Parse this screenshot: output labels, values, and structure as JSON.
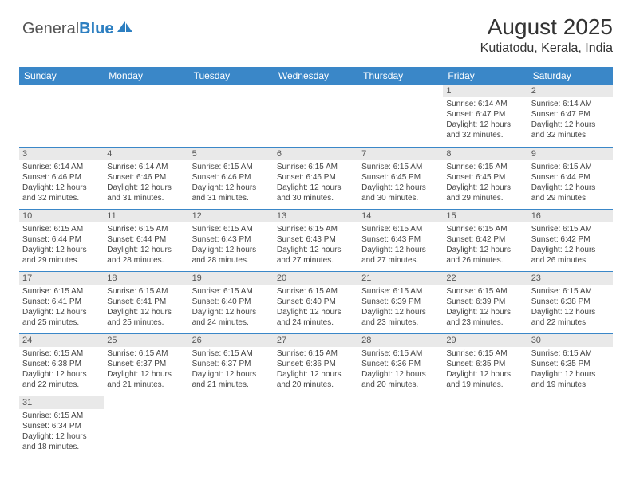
{
  "logo": {
    "word1": "General",
    "word2": "Blue"
  },
  "header": {
    "month_title": "August 2025",
    "location": "Kutiatodu, Kerala, India"
  },
  "colors": {
    "header_bg": "#3a87c8",
    "daynum_bg": "#e9e9e9",
    "rule": "#3a87c8"
  },
  "weekdays": [
    "Sunday",
    "Monday",
    "Tuesday",
    "Wednesday",
    "Thursday",
    "Friday",
    "Saturday"
  ],
  "weeks": [
    [
      null,
      null,
      null,
      null,
      null,
      {
        "n": "1",
        "sr": "Sunrise: 6:14 AM",
        "ss": "Sunset: 6:47 PM",
        "d1": "Daylight: 12 hours",
        "d2": "and 32 minutes."
      },
      {
        "n": "2",
        "sr": "Sunrise: 6:14 AM",
        "ss": "Sunset: 6:47 PM",
        "d1": "Daylight: 12 hours",
        "d2": "and 32 minutes."
      }
    ],
    [
      {
        "n": "3",
        "sr": "Sunrise: 6:14 AM",
        "ss": "Sunset: 6:46 PM",
        "d1": "Daylight: 12 hours",
        "d2": "and 32 minutes."
      },
      {
        "n": "4",
        "sr": "Sunrise: 6:14 AM",
        "ss": "Sunset: 6:46 PM",
        "d1": "Daylight: 12 hours",
        "d2": "and 31 minutes."
      },
      {
        "n": "5",
        "sr": "Sunrise: 6:15 AM",
        "ss": "Sunset: 6:46 PM",
        "d1": "Daylight: 12 hours",
        "d2": "and 31 minutes."
      },
      {
        "n": "6",
        "sr": "Sunrise: 6:15 AM",
        "ss": "Sunset: 6:46 PM",
        "d1": "Daylight: 12 hours",
        "d2": "and 30 minutes."
      },
      {
        "n": "7",
        "sr": "Sunrise: 6:15 AM",
        "ss": "Sunset: 6:45 PM",
        "d1": "Daylight: 12 hours",
        "d2": "and 30 minutes."
      },
      {
        "n": "8",
        "sr": "Sunrise: 6:15 AM",
        "ss": "Sunset: 6:45 PM",
        "d1": "Daylight: 12 hours",
        "d2": "and 29 minutes."
      },
      {
        "n": "9",
        "sr": "Sunrise: 6:15 AM",
        "ss": "Sunset: 6:44 PM",
        "d1": "Daylight: 12 hours",
        "d2": "and 29 minutes."
      }
    ],
    [
      {
        "n": "10",
        "sr": "Sunrise: 6:15 AM",
        "ss": "Sunset: 6:44 PM",
        "d1": "Daylight: 12 hours",
        "d2": "and 29 minutes."
      },
      {
        "n": "11",
        "sr": "Sunrise: 6:15 AM",
        "ss": "Sunset: 6:44 PM",
        "d1": "Daylight: 12 hours",
        "d2": "and 28 minutes."
      },
      {
        "n": "12",
        "sr": "Sunrise: 6:15 AM",
        "ss": "Sunset: 6:43 PM",
        "d1": "Daylight: 12 hours",
        "d2": "and 28 minutes."
      },
      {
        "n": "13",
        "sr": "Sunrise: 6:15 AM",
        "ss": "Sunset: 6:43 PM",
        "d1": "Daylight: 12 hours",
        "d2": "and 27 minutes."
      },
      {
        "n": "14",
        "sr": "Sunrise: 6:15 AM",
        "ss": "Sunset: 6:43 PM",
        "d1": "Daylight: 12 hours",
        "d2": "and 27 minutes."
      },
      {
        "n": "15",
        "sr": "Sunrise: 6:15 AM",
        "ss": "Sunset: 6:42 PM",
        "d1": "Daylight: 12 hours",
        "d2": "and 26 minutes."
      },
      {
        "n": "16",
        "sr": "Sunrise: 6:15 AM",
        "ss": "Sunset: 6:42 PM",
        "d1": "Daylight: 12 hours",
        "d2": "and 26 minutes."
      }
    ],
    [
      {
        "n": "17",
        "sr": "Sunrise: 6:15 AM",
        "ss": "Sunset: 6:41 PM",
        "d1": "Daylight: 12 hours",
        "d2": "and 25 minutes."
      },
      {
        "n": "18",
        "sr": "Sunrise: 6:15 AM",
        "ss": "Sunset: 6:41 PM",
        "d1": "Daylight: 12 hours",
        "d2": "and 25 minutes."
      },
      {
        "n": "19",
        "sr": "Sunrise: 6:15 AM",
        "ss": "Sunset: 6:40 PM",
        "d1": "Daylight: 12 hours",
        "d2": "and 24 minutes."
      },
      {
        "n": "20",
        "sr": "Sunrise: 6:15 AM",
        "ss": "Sunset: 6:40 PM",
        "d1": "Daylight: 12 hours",
        "d2": "and 24 minutes."
      },
      {
        "n": "21",
        "sr": "Sunrise: 6:15 AM",
        "ss": "Sunset: 6:39 PM",
        "d1": "Daylight: 12 hours",
        "d2": "and 23 minutes."
      },
      {
        "n": "22",
        "sr": "Sunrise: 6:15 AM",
        "ss": "Sunset: 6:39 PM",
        "d1": "Daylight: 12 hours",
        "d2": "and 23 minutes."
      },
      {
        "n": "23",
        "sr": "Sunrise: 6:15 AM",
        "ss": "Sunset: 6:38 PM",
        "d1": "Daylight: 12 hours",
        "d2": "and 22 minutes."
      }
    ],
    [
      {
        "n": "24",
        "sr": "Sunrise: 6:15 AM",
        "ss": "Sunset: 6:38 PM",
        "d1": "Daylight: 12 hours",
        "d2": "and 22 minutes."
      },
      {
        "n": "25",
        "sr": "Sunrise: 6:15 AM",
        "ss": "Sunset: 6:37 PM",
        "d1": "Daylight: 12 hours",
        "d2": "and 21 minutes."
      },
      {
        "n": "26",
        "sr": "Sunrise: 6:15 AM",
        "ss": "Sunset: 6:37 PM",
        "d1": "Daylight: 12 hours",
        "d2": "and 21 minutes."
      },
      {
        "n": "27",
        "sr": "Sunrise: 6:15 AM",
        "ss": "Sunset: 6:36 PM",
        "d1": "Daylight: 12 hours",
        "d2": "and 20 minutes."
      },
      {
        "n": "28",
        "sr": "Sunrise: 6:15 AM",
        "ss": "Sunset: 6:36 PM",
        "d1": "Daylight: 12 hours",
        "d2": "and 20 minutes."
      },
      {
        "n": "29",
        "sr": "Sunrise: 6:15 AM",
        "ss": "Sunset: 6:35 PM",
        "d1": "Daylight: 12 hours",
        "d2": "and 19 minutes."
      },
      {
        "n": "30",
        "sr": "Sunrise: 6:15 AM",
        "ss": "Sunset: 6:35 PM",
        "d1": "Daylight: 12 hours",
        "d2": "and 19 minutes."
      }
    ],
    [
      {
        "n": "31",
        "sr": "Sunrise: 6:15 AM",
        "ss": "Sunset: 6:34 PM",
        "d1": "Daylight: 12 hours",
        "d2": "and 18 minutes."
      },
      null,
      null,
      null,
      null,
      null,
      null
    ]
  ]
}
